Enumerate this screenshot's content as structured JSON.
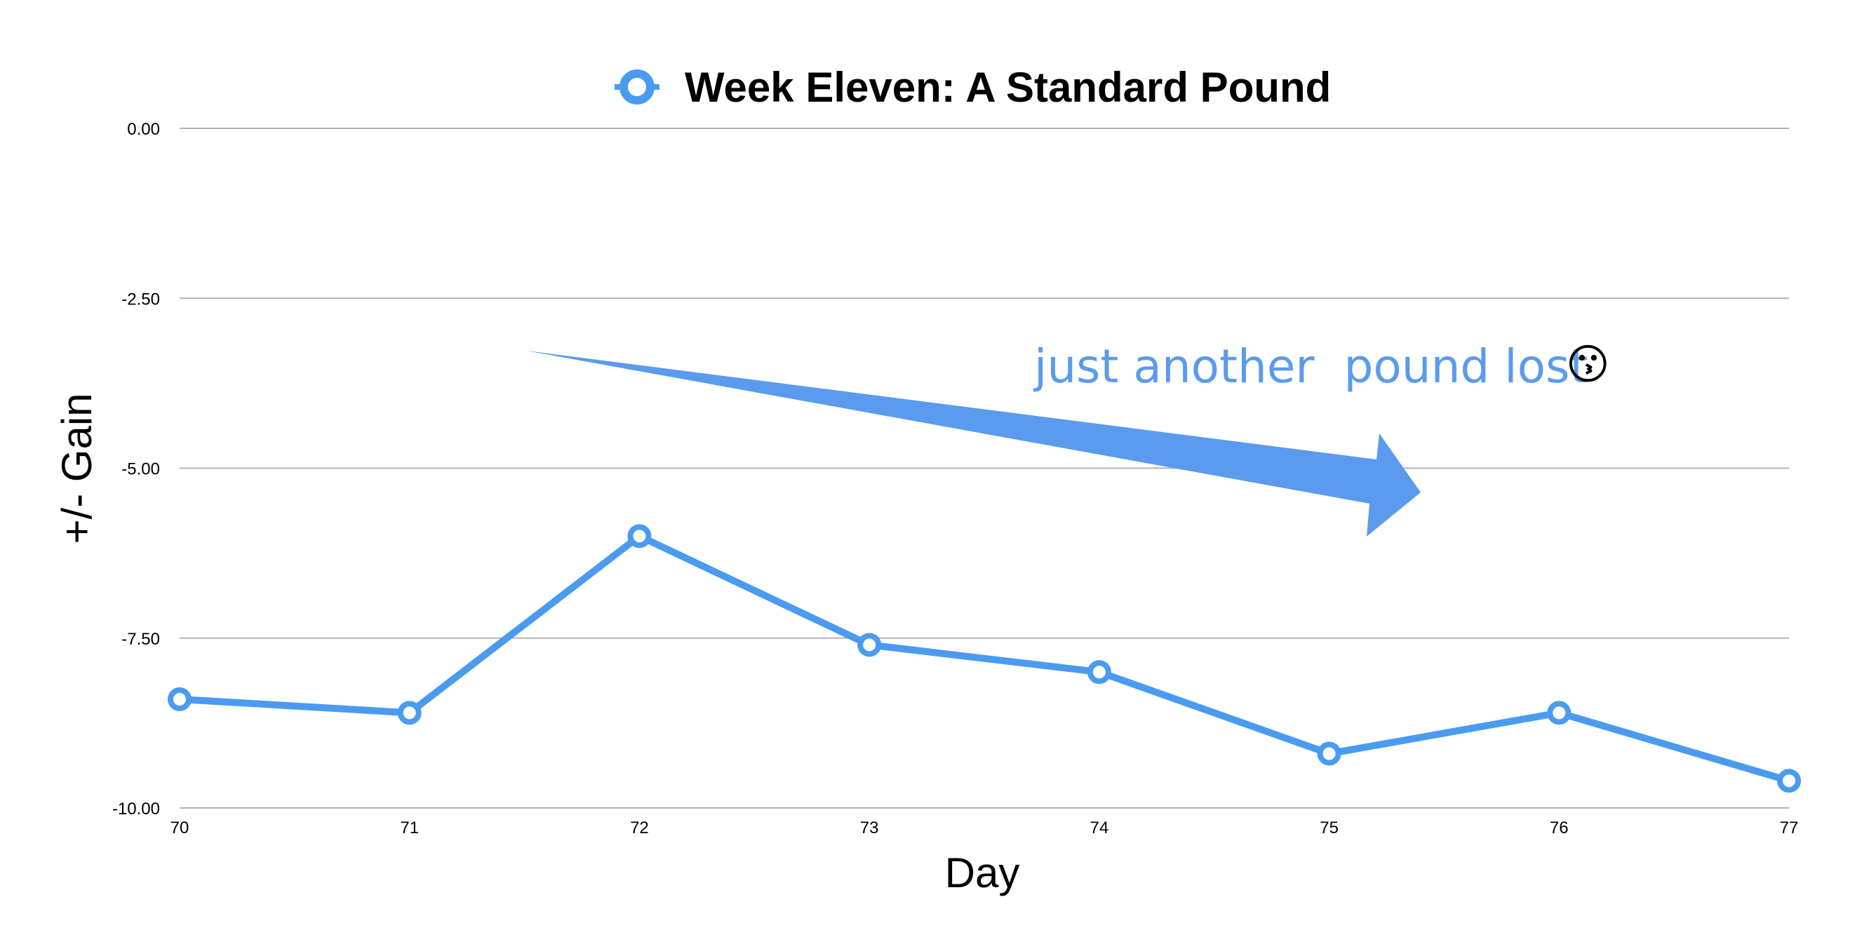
{
  "chart_data": {
    "type": "line",
    "legend": {
      "label": "Week Eleven: A Standard Pound",
      "placement": "top-center"
    },
    "xlabel": "Day",
    "ylabel": "+/- Gain",
    "x": [
      70,
      71,
      72,
      73,
      74,
      75,
      76,
      77
    ],
    "x_tick_labels": [
      "70",
      "71",
      "72",
      "73",
      "74",
      "75",
      "76",
      "77"
    ],
    "ylim": [
      -10,
      0
    ],
    "y_ticks": [
      0,
      -2.5,
      -5,
      -7.5,
      -10
    ],
    "y_tick_labels": [
      "0.00",
      "-2.50",
      "-5.00",
      "-7.50",
      "-10.00"
    ],
    "grid": "horizontal",
    "series": [
      {
        "name": "Week Eleven: A Standard Pound",
        "color": "#4a9bf0",
        "values": [
          -8.4,
          -8.6,
          -6.0,
          -7.6,
          -8.0,
          -9.2,
          -8.6,
          -9.6
        ]
      }
    ],
    "annotation": {
      "text": "just another  pound lost",
      "emoji": "😗",
      "color": "#5b9bee",
      "arrow": "downward arrow pointing right"
    }
  }
}
